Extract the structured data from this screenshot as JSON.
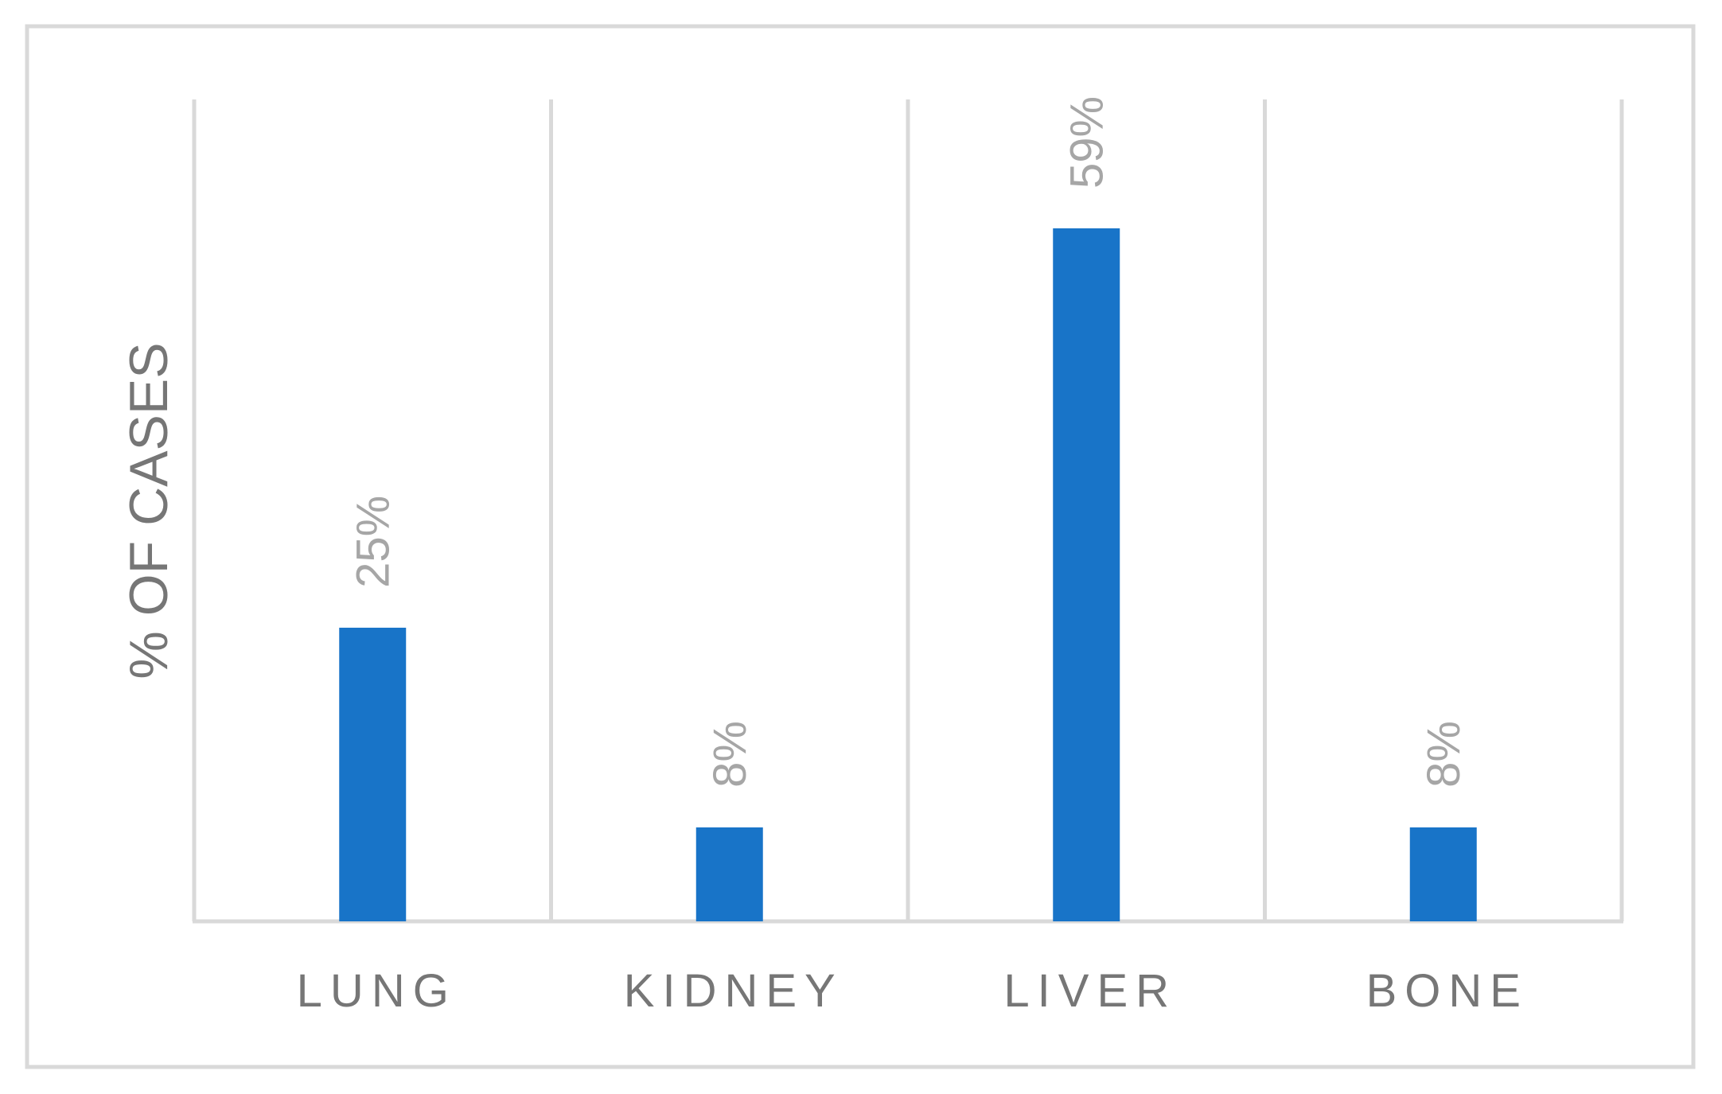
{
  "chart_data": {
    "type": "bar",
    "categories": [
      "LUNG",
      "KIDNEY",
      "LIVER",
      "BONE"
    ],
    "values": [
      25,
      8,
      59,
      8
    ],
    "data_labels": [
      "25%",
      "8%",
      "59%",
      "8%"
    ],
    "ylabel": "% OF CASES",
    "xlabel": "",
    "ylim": [
      0,
      70
    ],
    "unit": "%",
    "grid": true,
    "legend": "none",
    "colors": {
      "bar": "#1874c8",
      "grid": "#d9d9d9",
      "label": "#a6a6a6",
      "axis_text": "#767676"
    }
  }
}
